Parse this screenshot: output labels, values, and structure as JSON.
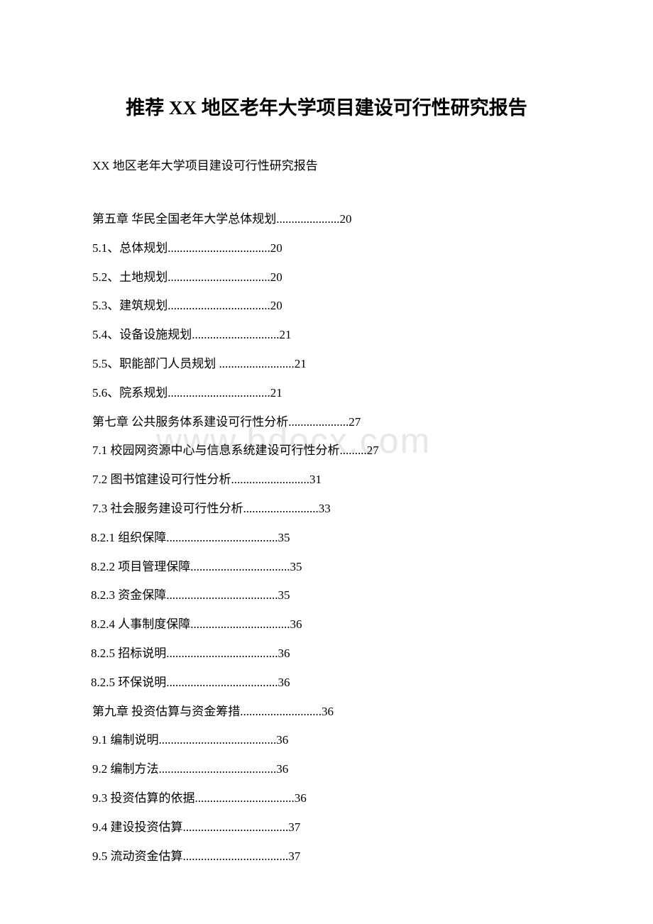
{
  "document": {
    "title": "推荐 XX 地区老年大学项目建设可行性研究报告",
    "subtitle": "XX 地区老年大学项目建设可行性研究报告",
    "watermark": "www.bdocx.com",
    "toc": [
      {
        "text": "第五章 华民全国老年大学总体规划.....................20",
        "indent": "main"
      },
      {
        "text": "5.1、总体规划..................................20",
        "indent": "main"
      },
      {
        "text": "5.2、土地规划..................................20",
        "indent": "main"
      },
      {
        "text": "5.3、建筑规划..................................20",
        "indent": "main"
      },
      {
        "text": "5.4、设备设施规划.............................21",
        "indent": "main"
      },
      {
        "text": "5.5、职能部门人员规划 .........................21",
        "indent": "main"
      },
      {
        "text": "5.6、院系规划..................................21",
        "indent": "main"
      },
      {
        "text": "第七章 公共服务体系建设可行性分析....................27",
        "indent": "main"
      },
      {
        "text": "7.1 校园网资源中心与信息系统建设可行性分析.........27",
        "indent": "main"
      },
      {
        "text": "7.2 图书馆建设可行性分析..........................31",
        "indent": "main"
      },
      {
        "text": "7.3 社会服务建设可行性分析.........................33",
        "indent": "main"
      },
      {
        "text": "8.2.1 组织保障.....................................35",
        "indent": "sub"
      },
      {
        "text": "8.2.2 项目管理保障.................................35",
        "indent": "sub"
      },
      {
        "text": "8.2.3 资金保障.....................................35",
        "indent": "sub"
      },
      {
        "text": "8.2.4 人事制度保障.................................36",
        "indent": "sub"
      },
      {
        "text": "8.2.5 招标说明.....................................36",
        "indent": "sub"
      },
      {
        "text": "8.2.5 环保说明.....................................36",
        "indent": "sub"
      },
      {
        "text": "第九章 投资估算与资金筹措...........................36",
        "indent": "main"
      },
      {
        "text": "9.1 编制说明.......................................36",
        "indent": "main"
      },
      {
        "text": "9.2 编制方法.......................................36",
        "indent": "main"
      },
      {
        "text": "9.3 投资估算的依据.................................36",
        "indent": "main"
      },
      {
        "text": "9.4 建设投资估算...................................37",
        "indent": "main"
      },
      {
        "text": "9.5 流动资金估算...................................37",
        "indent": "main"
      }
    ],
    "colors": {
      "background": "#ffffff",
      "text": "#000000",
      "watermark": "#e8e8e8"
    },
    "typography": {
      "title_fontsize": 27,
      "body_fontsize": 17,
      "watermark_fontsize": 50,
      "font_family": "SimSun"
    }
  }
}
